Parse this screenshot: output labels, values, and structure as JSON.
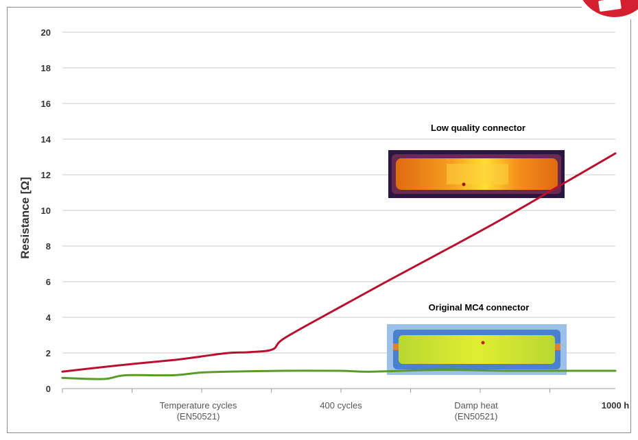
{
  "chart_data": {
    "type": "line",
    "ylabel": "Resistance [Ω]",
    "ylim": [
      0,
      20
    ],
    "yticks": [
      "0",
      "2",
      "4",
      "6",
      "8",
      "10",
      "12",
      "14",
      "16",
      "18",
      "20"
    ],
    "x_tick_labels": [
      {
        "line1": "Temperature cycles",
        "line2": "(EN50521)"
      },
      {
        "line1": "400 cycles",
        "line2": ""
      },
      {
        "line1": "Damp heat",
        "line2": "(EN50521)"
      },
      {
        "line1": "1000 h",
        "line2": ""
      }
    ],
    "x_range": [
      0,
      1000
    ],
    "grid": true,
    "series": [
      {
        "name": "Low quality connector",
        "color": "#b8102e",
        "x": [
          0,
          100,
          200,
          250,
          300,
          340,
          380,
          400,
          480,
          580,
          700,
          800,
          900,
          1000
        ],
        "y": [
          0.95,
          1.3,
          1.6,
          1.8,
          2.0,
          2.05,
          2.2,
          2.8,
          4.2,
          5.9,
          7.9,
          9.6,
          11.4,
          13.2
        ]
      },
      {
        "name": "Original MC4 connector",
        "color": "#5a9a2a",
        "x": [
          0,
          40,
          80,
          115,
          200,
          250,
          300,
          400,
          500,
          560,
          680,
          800,
          900,
          1000
        ],
        "y": [
          0.6,
          0.55,
          0.55,
          0.75,
          0.75,
          0.9,
          0.95,
          1.0,
          1.0,
          0.95,
          1.05,
          1.0,
          1.0,
          1.0
        ]
      }
    ]
  }
}
